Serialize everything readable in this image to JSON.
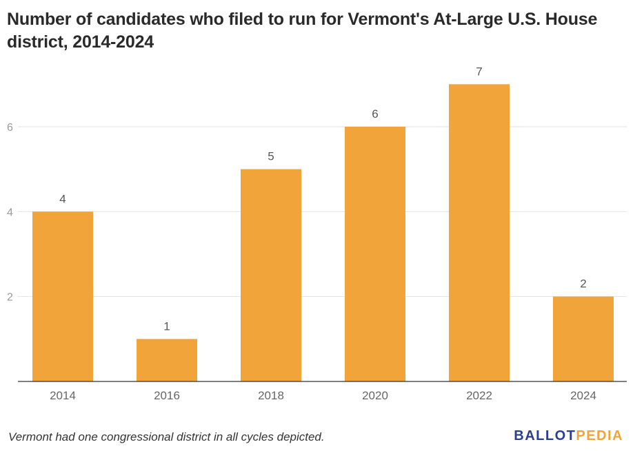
{
  "chart_data": {
    "type": "bar",
    "title": "Number of candidates who filed to run for Vermont's At-Large U.S. House district, 2014-2024",
    "xlabel": "",
    "ylabel": "",
    "categories": [
      "2014",
      "2016",
      "2018",
      "2020",
      "2022",
      "2024"
    ],
    "values": [
      4,
      1,
      5,
      6,
      7,
      2
    ],
    "data_labels": [
      "4",
      "1",
      "5",
      "6",
      "7",
      "2"
    ],
    "yticks": [
      2,
      4,
      6
    ],
    "ylim": [
      0,
      7.5
    ],
    "grid": true,
    "legend": "none",
    "bar_color": "#f0a43a"
  },
  "footnote": "Vermont had one congressional district in all cycles depicted.",
  "logo": {
    "part1": "BALLOT",
    "part2": "PEDIA",
    "color1": "#2b3f8f",
    "color2": "#f0a43a"
  }
}
